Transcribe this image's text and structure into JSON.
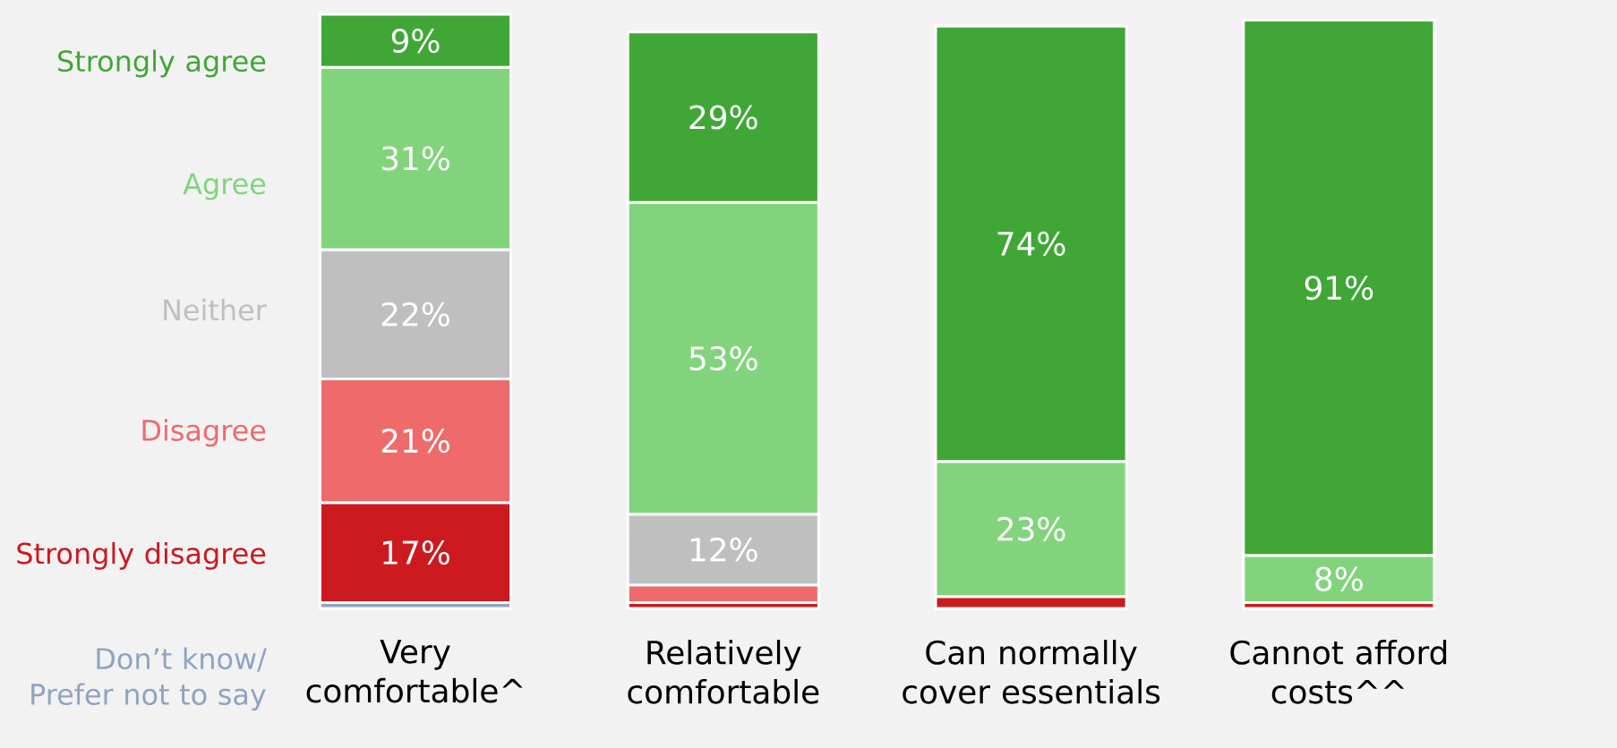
{
  "chart_data": {
    "type": "bar",
    "stacked": true,
    "legend": "left",
    "data_labels": false,
    "categories": [
      "Very comfortable^",
      "Relatively comfortable",
      "Can normally cover essentials",
      "Cannot afford costs^^"
    ],
    "series": [
      {
        "name": "Don’t know/ Prefer not to say",
        "color": "#8fa3c0",
        "values": [
          1,
          null,
          null,
          null
        ],
        "value_labels": [
          null,
          null,
          null,
          null
        ]
      },
      {
        "name": "Strongly disagree",
        "color": "#cc1a1f",
        "values": [
          17,
          1,
          2,
          1
        ],
        "value_labels": [
          "17%",
          null,
          null,
          null
        ]
      },
      {
        "name": "Disagree",
        "color": "#ee6a6b",
        "values": [
          21,
          3,
          null,
          null
        ],
        "value_labels": [
          "21%",
          null,
          null,
          null
        ]
      },
      {
        "name": "Neither",
        "color": "#bfbfbf",
        "values": [
          22,
          12,
          null,
          null
        ],
        "value_labels": [
          "22%",
          "12%",
          null,
          null
        ]
      },
      {
        "name": "Agree",
        "color": "#82d47c",
        "values": [
          31,
          53,
          23,
          8
        ],
        "value_labels": [
          "31%",
          "53%",
          "23%",
          "8%"
        ]
      },
      {
        "name": "Strongly agree",
        "color": "#40a737",
        "values": [
          9,
          29,
          74,
          91
        ],
        "value_labels": [
          "9%",
          "29%",
          "74%",
          "91%"
        ]
      }
    ]
  }
}
